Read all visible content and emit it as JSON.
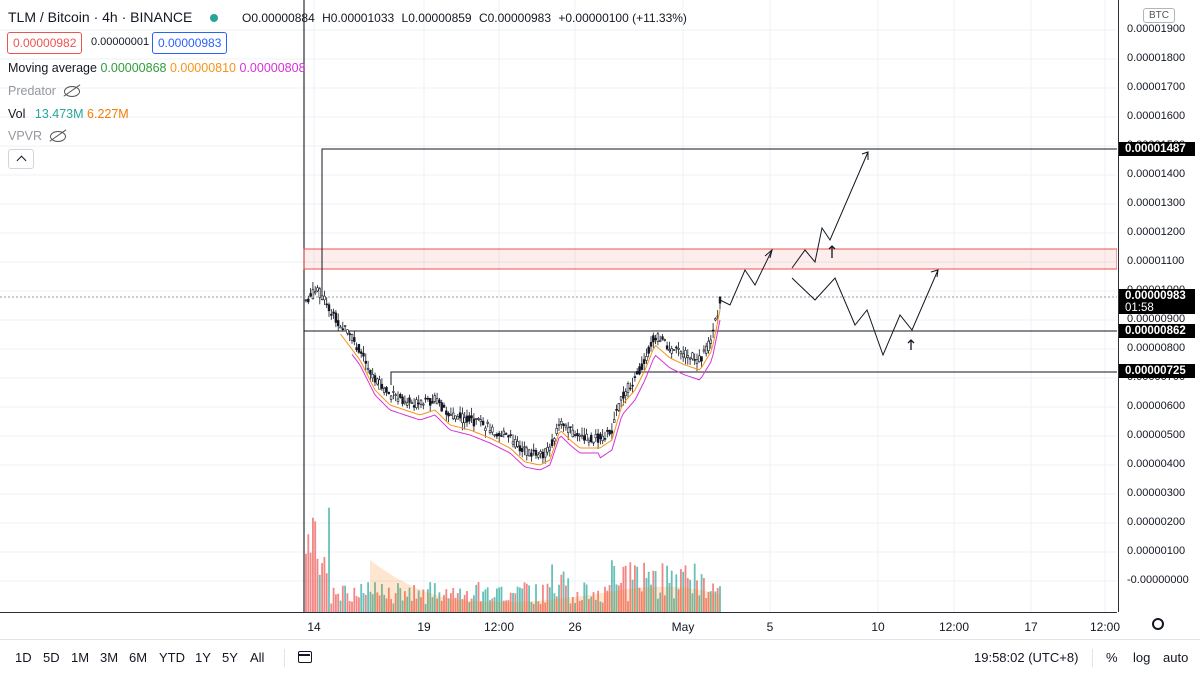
{
  "header": {
    "symbol": "TLM / Bitcoin · 4h · BINANCE",
    "ohlc": {
      "o_label": "O",
      "o": "0.00000884",
      "h_label": "H",
      "h": "0.00001033",
      "l_label": "L",
      "l": "0.00000859",
      "c_label": "C",
      "c": "0.00000983",
      "change": "+0.00000100 (+11.33%)"
    },
    "bid": "0.00000982",
    "spread": "0.00000001",
    "ask": "0.00000983",
    "colors": {
      "bid": "#ef5350",
      "ask": "#2962ff",
      "status_dot": "#26a69a"
    }
  },
  "indicators": {
    "ma": {
      "label": "Moving average",
      "v1": "0.00000868",
      "v2": "0.00000810",
      "v3": "0.00000808",
      "c1": "#2e9e3a",
      "c2": "#f7931a",
      "c3": "#d633d6"
    },
    "predator": {
      "label": "Predator",
      "icon": "eye-off-icon"
    },
    "vol": {
      "label": "Vol",
      "v1": "13.473M",
      "v2": "6.227M",
      "c1": "#26a69a",
      "c2": "#f57c00"
    },
    "vpvr": {
      "label": "VPVR",
      "icon": "eye-off-icon"
    },
    "collapse_icon": "chevron-up-icon"
  },
  "price_axis": {
    "currency": "BTC",
    "ticks": [
      "0.00001900",
      "0.00001800",
      "0.00001700",
      "0.00001600",
      "0.00001500",
      "0.00001400",
      "0.00001300",
      "0.00001200",
      "0.00001100",
      "0.00001000",
      "0.00000900",
      "0.00000800",
      "0.00000700",
      "0.00000600",
      "0.00000500",
      "0.00000400",
      "0.00000300",
      "0.00000200",
      "0.00000100",
      "-0.00000000"
    ],
    "tags": {
      "top": "0.00001487",
      "last": "0.00000983",
      "countdown": "01:58",
      "mid": "0.00000862",
      "low": "0.00000725"
    }
  },
  "time_axis": {
    "labels": [
      "14",
      "19",
      "12:00",
      "26",
      "May",
      "5",
      "10",
      "12:00",
      "17",
      "12:00"
    ]
  },
  "bottom_bar": {
    "timeframes": [
      "1D",
      "5D",
      "1M",
      "3M",
      "6M",
      "YTD",
      "1Y",
      "5Y",
      "All"
    ],
    "clock": "19:58:02 (UTC+8)",
    "percent": "%",
    "log": "log",
    "auto": "auto",
    "settings_icon": "gear-icon",
    "compare_icon": "calendar-range-icon"
  }
}
